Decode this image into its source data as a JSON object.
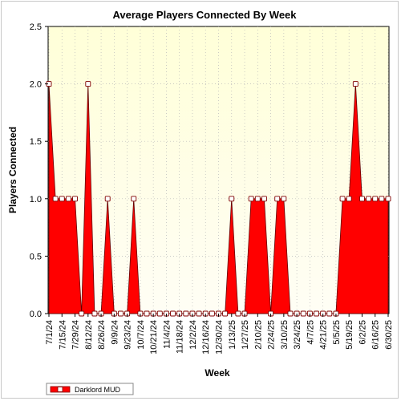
{
  "chart_data": {
    "type": "area",
    "title": "Average Players Connected By Week",
    "xlabel": "Week",
    "ylabel": "Players Connected",
    "ylim": [
      0,
      2.5
    ],
    "yticks": [
      "0.0",
      "0.5",
      "1.0",
      "1.5",
      "2.0",
      "2.5"
    ],
    "xtick_labels": [
      "7/1/24",
      "7/15/24",
      "7/29/24",
      "8/12/24",
      "8/26/24",
      "9/9/24",
      "9/23/24",
      "10/7/24",
      "10/21/24",
      "11/4/24",
      "11/18/24",
      "12/2/24",
      "12/16/24",
      "12/30/24",
      "1/13/25",
      "1/27/25",
      "2/10/25",
      "2/24/25",
      "3/10/25",
      "3/24/25",
      "4/7/25",
      "4/21/25",
      "5/5/25",
      "5/19/25",
      "6/2/25",
      "6/16/25",
      "6/30/25"
    ],
    "grid": true,
    "legend_position": "bottom-left",
    "series": [
      {
        "name": "Darklord MUD",
        "color": "#ff0000",
        "x": [
          "7/1/24",
          "7/8/24",
          "7/15/24",
          "7/22/24",
          "7/29/24",
          "8/5/24",
          "8/12/24",
          "8/19/24",
          "8/26/24",
          "9/2/24",
          "9/9/24",
          "9/16/24",
          "9/23/24",
          "9/30/24",
          "10/7/24",
          "10/14/24",
          "10/21/24",
          "10/28/24",
          "11/4/24",
          "11/11/24",
          "11/18/24",
          "11/25/24",
          "12/2/24",
          "12/9/24",
          "12/16/24",
          "12/23/24",
          "12/30/24",
          "1/6/25",
          "1/13/25",
          "1/20/25",
          "1/27/25",
          "2/3/25",
          "2/10/25",
          "2/17/25",
          "2/24/25",
          "3/3/25",
          "3/10/25",
          "3/17/25",
          "3/24/25",
          "3/31/25",
          "4/7/25",
          "4/14/25",
          "4/21/25",
          "4/28/25",
          "5/5/25",
          "5/12/25",
          "5/19/25",
          "5/26/25",
          "6/2/25",
          "6/9/25",
          "6/16/25",
          "6/23/25",
          "6/30/25"
        ],
        "values": [
          2,
          1,
          1,
          1,
          1,
          0,
          2,
          0,
          0,
          1,
          0,
          0,
          0,
          1,
          0,
          0,
          0,
          0,
          0,
          0,
          0,
          0,
          0,
          0,
          0,
          0,
          0,
          0,
          1,
          0,
          0,
          1,
          1,
          1,
          0,
          1,
          1,
          0,
          0,
          0,
          0,
          0,
          0,
          0,
          0,
          1,
          1,
          2,
          1,
          1,
          1,
          1,
          1
        ]
      }
    ]
  }
}
